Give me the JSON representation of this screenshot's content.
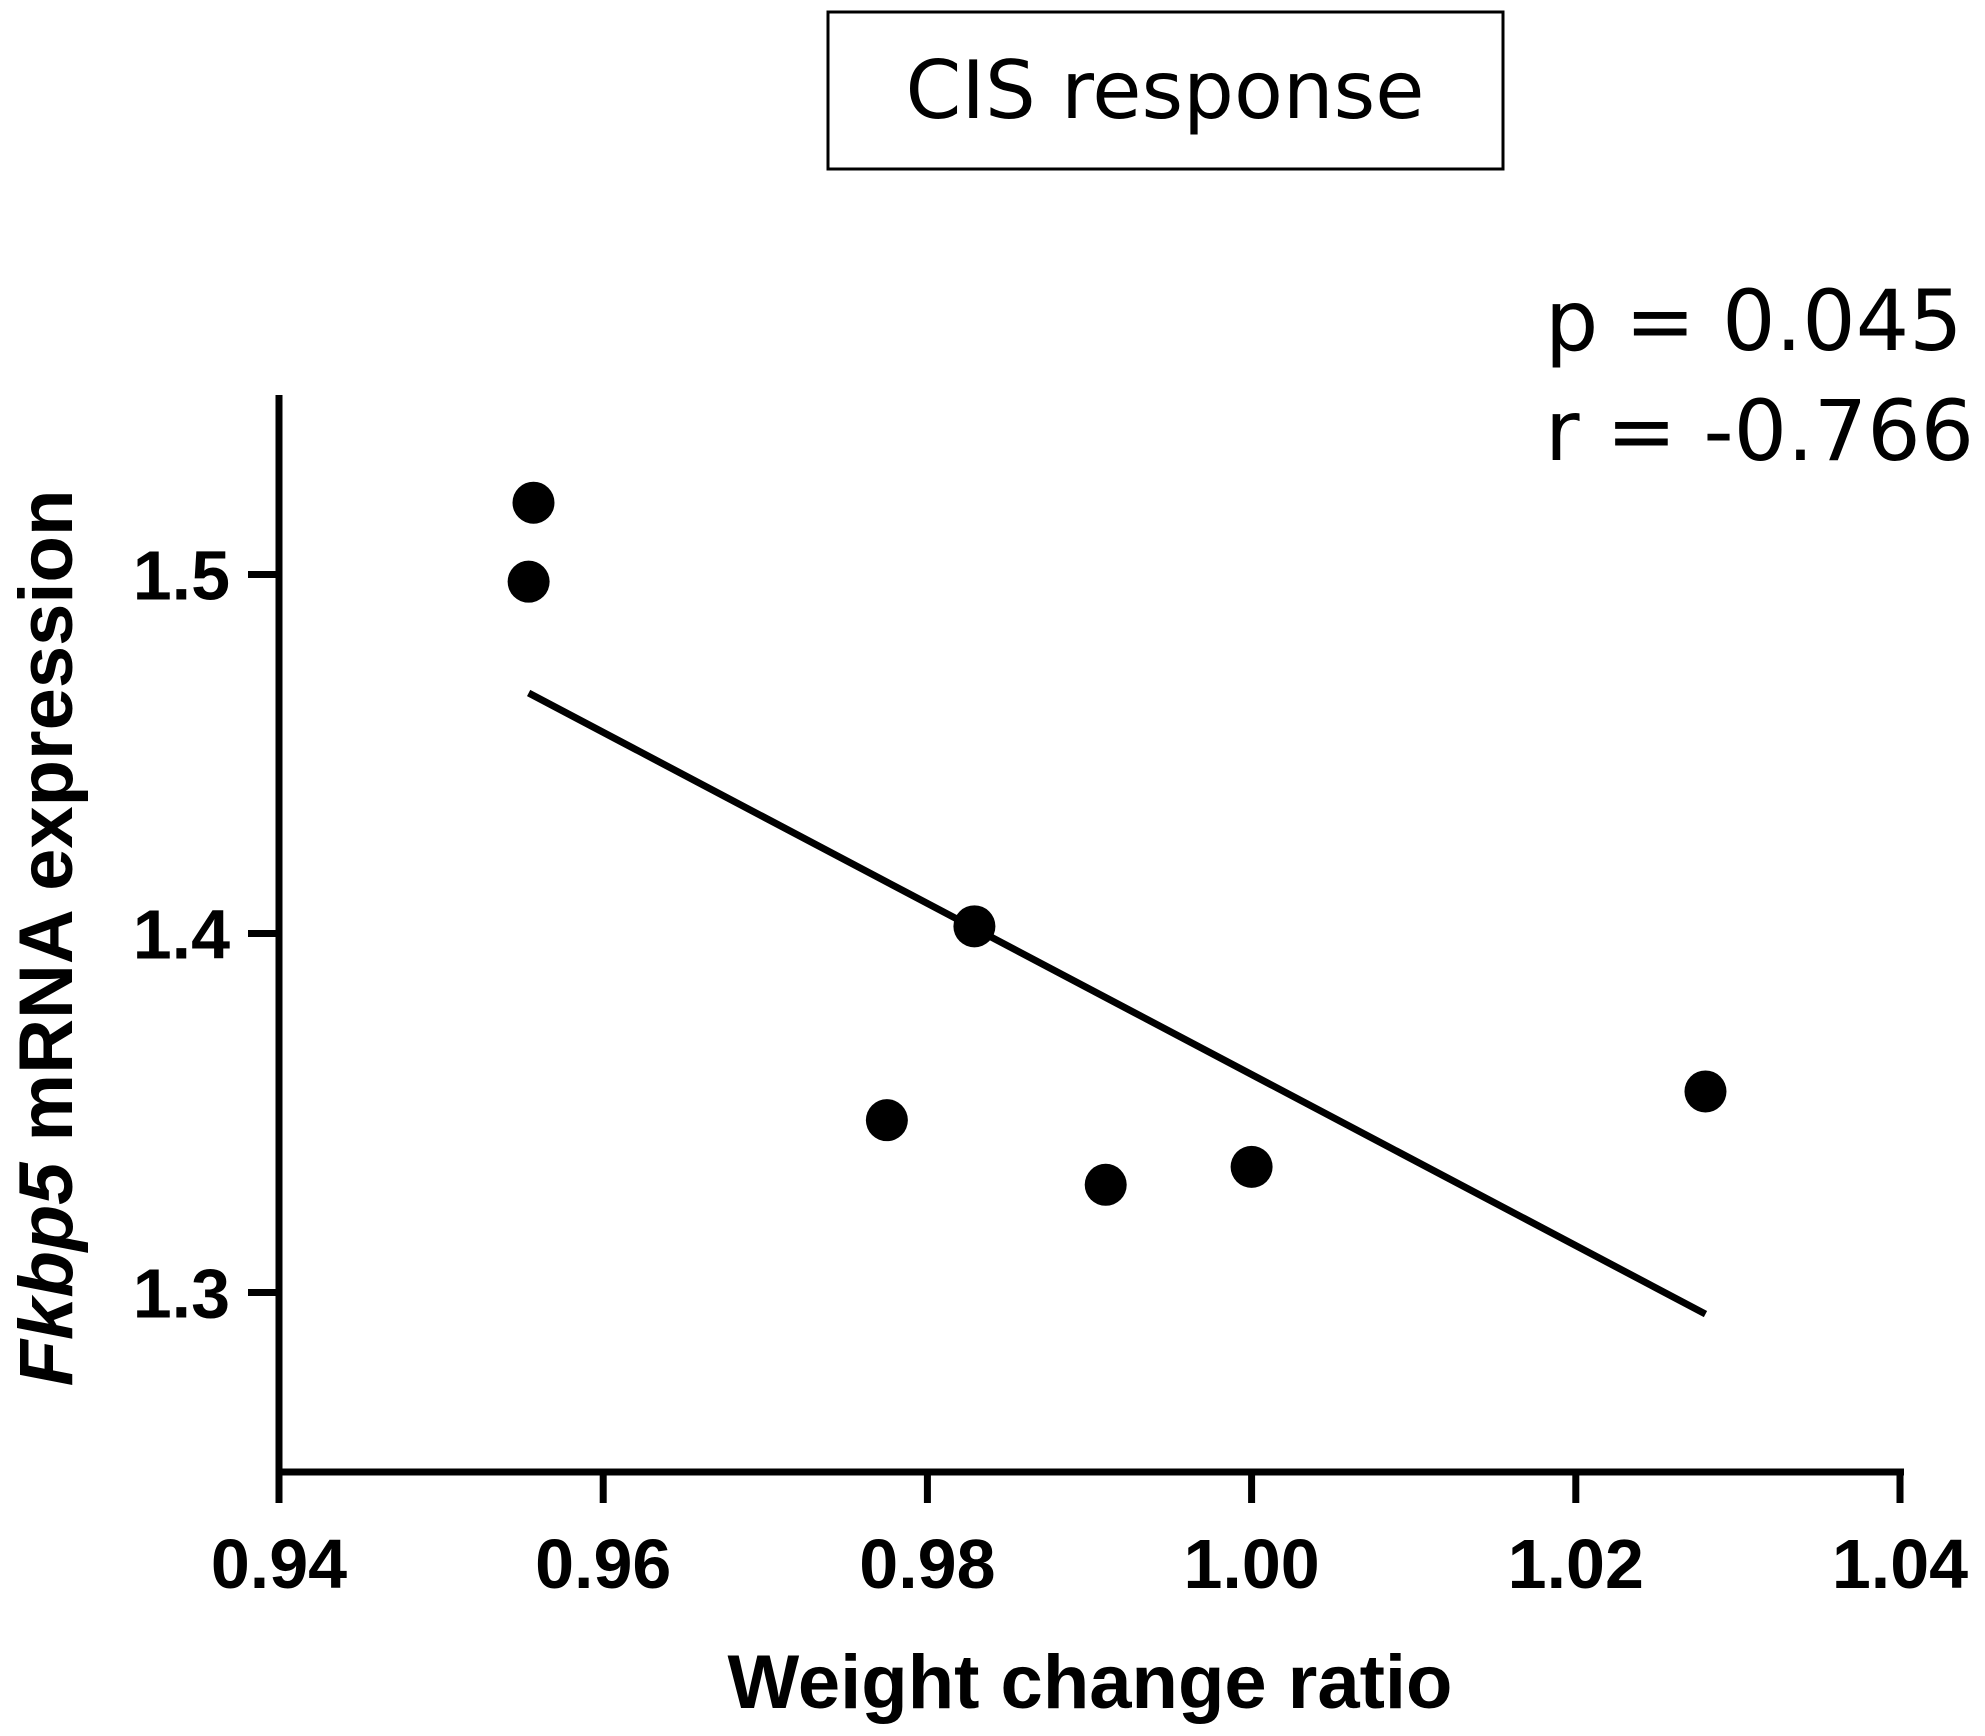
{
  "chart_data": {
    "type": "scatter",
    "title": "CIS response",
    "xlabel": "Weight change ratio",
    "ylabel_gene": "Fkbp5",
    "ylabel_rest": " mRNA expression",
    "annotations": [
      "p = 0.045",
      "r = -0.766"
    ],
    "xlim": [
      0.94,
      1.04
    ],
    "ylim": [
      1.25,
      1.55
    ],
    "xticks": [
      0.94,
      0.96,
      0.98,
      1.0,
      1.02,
      1.04
    ],
    "xtick_labels": [
      "0.94",
      "0.96",
      "0.98",
      "1.00",
      "1.02",
      "1.04"
    ],
    "yticks": [
      1.3,
      1.4,
      1.5
    ],
    "ytick_labels": [
      "1.3",
      "1.4",
      "1.5"
    ],
    "points": [
      {
        "x": 0.9557,
        "y": 1.52
      },
      {
        "x": 0.9554,
        "y": 1.498
      },
      {
        "x": 0.9829,
        "y": 1.402
      },
      {
        "x": 0.9775,
        "y": 1.348
      },
      {
        "x": 0.991,
        "y": 1.33
      },
      {
        "x": 1.0,
        "y": 1.335
      },
      {
        "x": 1.028,
        "y": 1.356
      }
    ],
    "fit_line": {
      "x": [
        0.9554,
        1.028
      ],
      "y": [
        1.467,
        1.294
      ]
    },
    "grid": false,
    "legend": "none"
  }
}
